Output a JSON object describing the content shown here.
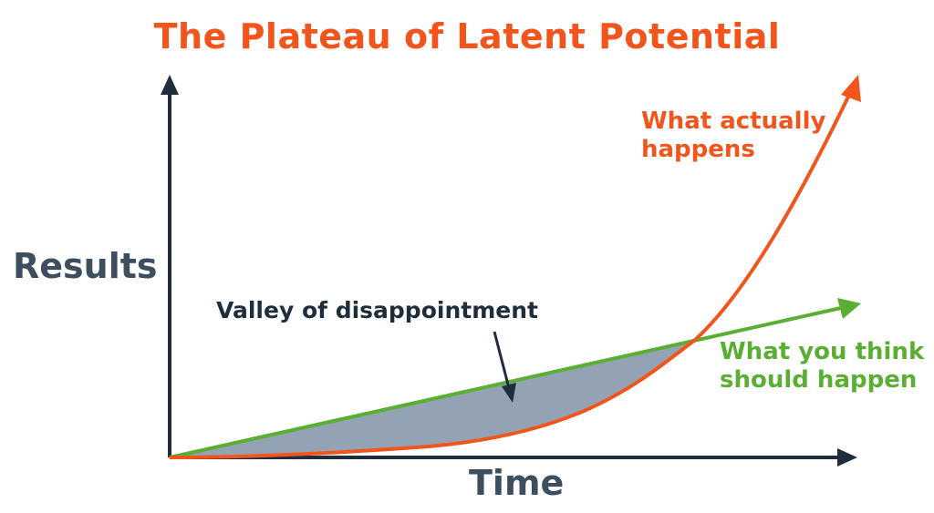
{
  "title": "The Plateau of Latent Potential",
  "axes": {
    "y_label": "Results",
    "x_label": "Time"
  },
  "annotations": {
    "actual": [
      "What actually",
      "happens"
    ],
    "think": [
      "What you think",
      "should happen"
    ],
    "valley": "Valley of disappointment"
  },
  "colors": {
    "title": "#f2551c",
    "actual_curve": "#f2551c",
    "expected_line": "#5aae33",
    "axis": "#1f2d3d",
    "axis_label": "#3d4e5e",
    "valley_fill": "#93a3b3"
  }
}
